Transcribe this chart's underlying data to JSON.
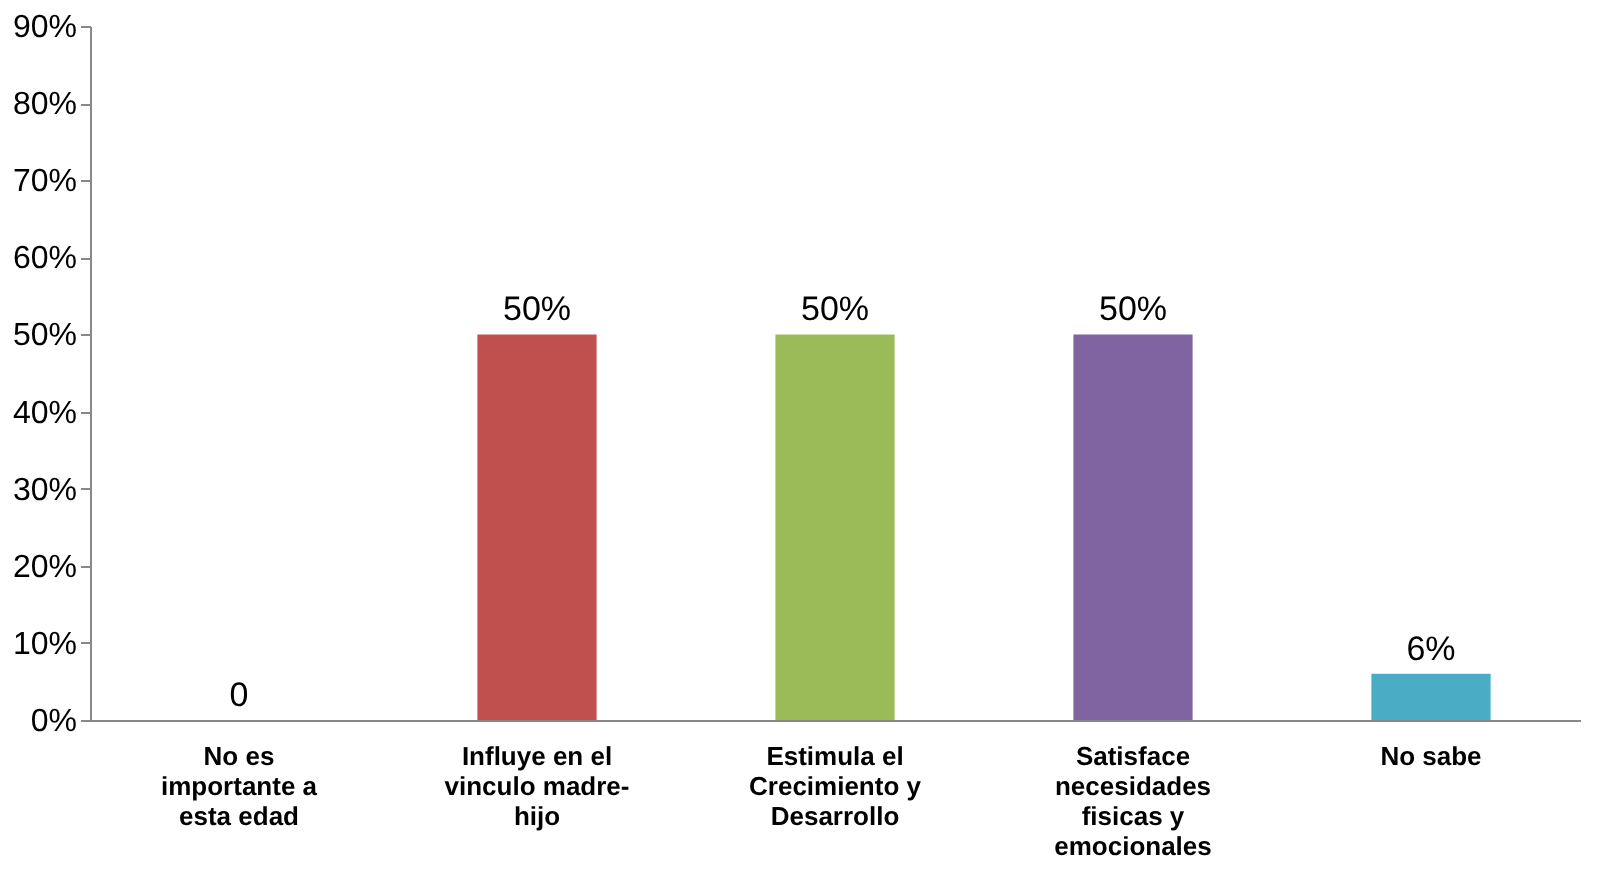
{
  "chart_data": {
    "type": "bar",
    "categories": [
      "No es importante a esta edad",
      "Influye en el vinculo madre-hijo",
      "Estimula el Crecimiento y Desarrollo",
      "Satisface necesidades fisicas y emocionales",
      "No sabe"
    ],
    "values": [
      0,
      50,
      50,
      50,
      6
    ],
    "colors": [
      "#2e5a8f",
      "#c0504d",
      "#9bbb59",
      "#8064a2",
      "#4bacc6"
    ],
    "value_labels": [
      "0",
      "50%",
      "50%",
      "50%",
      "6%"
    ],
    "ylim": [
      0,
      90
    ],
    "yticks": [
      {
        "value": 0,
        "label": "0%"
      },
      {
        "value": 10,
        "label": "10%"
      },
      {
        "value": 20,
        "label": "20%"
      },
      {
        "value": 30,
        "label": "30%"
      },
      {
        "value": 40,
        "label": "40%"
      },
      {
        "value": 50,
        "label": "50%"
      },
      {
        "value": 60,
        "label": "60%"
      },
      {
        "value": 70,
        "label": "70%"
      },
      {
        "value": 80,
        "label": "80%"
      },
      {
        "value": 90,
        "label": "90%"
      }
    ],
    "grid": false
  }
}
